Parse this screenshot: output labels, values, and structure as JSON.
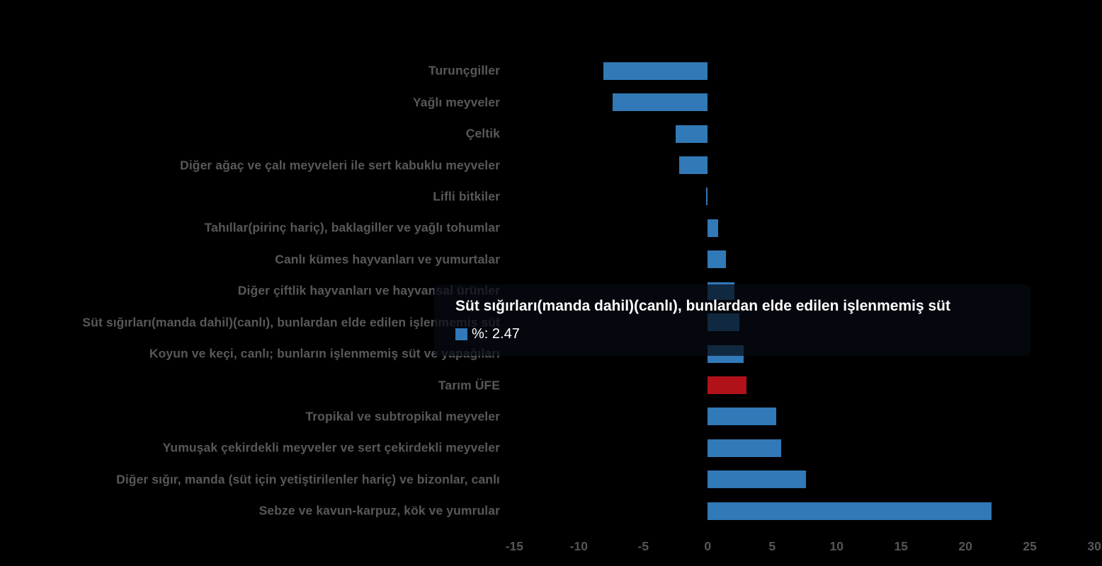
{
  "chart_data": {
    "type": "bar",
    "orientation": "horizontal",
    "title": "",
    "xlabel": "",
    "ylabel": "",
    "series_name": "%",
    "categories": [
      "Turunçgiller",
      "Yağlı meyveler",
      "Çeltik",
      "Diğer ağaç ve çalı meyveleri ile sert kabuklu meyveler",
      "Lifli bitkiler",
      "Tahıllar(pirinç hariç), baklagiller ve yağlı tohumlar",
      "Canlı kümes hayvanları ve yumurtalar",
      "Diğer çiftlik hayvanları ve hayvansal ürünler",
      "Süt sığırları(manda dahil)(canlı), bunlardan elde edilen işlenmemiş süt",
      "Koyun ve keçi, canlı; bunların işlenmemiş süt ve yapağıları",
      "Tarım ÜFE",
      "Tropikal ve subtropikal meyveler",
      "Yumuşak çekirdekli meyveler ve sert çekirdekli meyveler",
      "Diğer sığır, manda (süt için yetiştirilenler hariç) ve bizonlar, canlı",
      "Sebze ve kavun-karpuz, kök ve yumrular"
    ],
    "values": [
      -8.1,
      -7.4,
      -2.5,
      -2.2,
      -0.1,
      0.8,
      1.4,
      2.1,
      2.47,
      2.8,
      3.0,
      5.3,
      5.7,
      7.6,
      22.0
    ],
    "x_ticks": [
      "-15",
      "-10",
      "-5",
      "0",
      "5",
      "10",
      "15",
      "20",
      "25",
      "30"
    ],
    "xlim": [
      -15.9,
      30.6
    ],
    "grid": false,
    "legend_position": "none",
    "background_color": "#000000",
    "bar_color": "#3179b7",
    "highlight_bar_color": "#b1121a",
    "highlight_category": "Tarım ÜFE",
    "hovered_category": "Süt sığırları(manda dahil)(canlı), bunlardan elde edilen işlenmemiş süt",
    "label_color": "#58585a"
  },
  "tooltip": {
    "title": "Süt sığırları(manda dahil)(canlı), bunlardan elde edilen işlenmemiş süt",
    "marker_color": "#3179b7",
    "value_label": "%: 2.47"
  }
}
